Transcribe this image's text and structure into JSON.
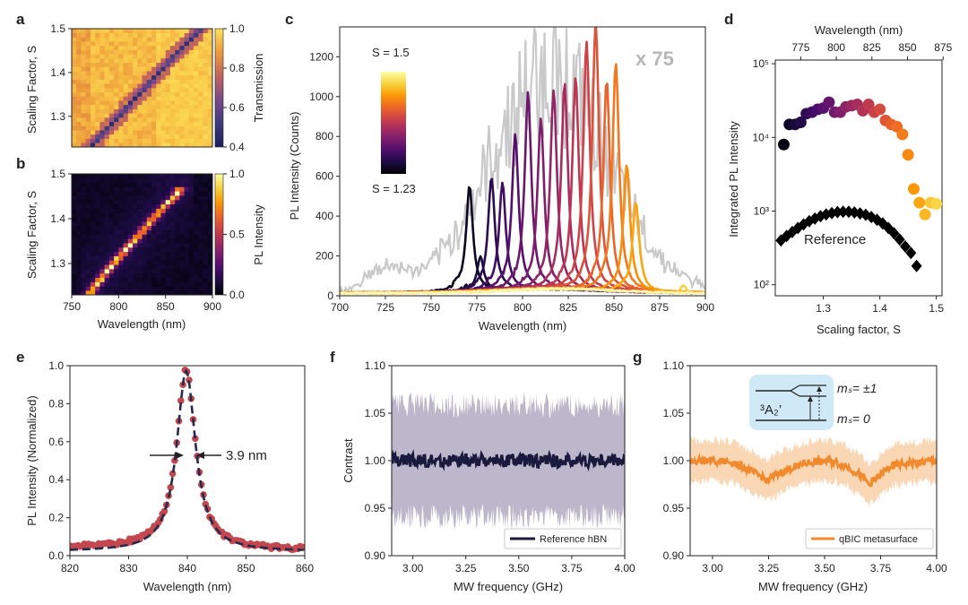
{
  "chart_data": [
    {
      "panel": "a",
      "type": "heatmap",
      "ylabel": "Scaling Factor, S",
      "colorbar_label": "Transmission",
      "colorbar_ticks": [
        "1.0",
        "0.8",
        "0.6",
        "0.4"
      ],
      "yticks": [
        "1.5",
        "1.4",
        "1.3"
      ],
      "xlim": [
        750,
        900
      ],
      "ylim": [
        1.23,
        1.5
      ],
      "clim": [
        0.4,
        1.0
      ],
      "ridge": [
        [
          770,
          1.23
        ],
        [
          800,
          1.3
        ],
        [
          830,
          1.37
        ],
        [
          860,
          1.44
        ],
        [
          888,
          1.5
        ]
      ]
    },
    {
      "panel": "b",
      "type": "heatmap",
      "xlabel": "Wavelength (nm)",
      "ylabel": "Scaling Factor, S",
      "colorbar_label": "PL Intensity",
      "colorbar_ticks": [
        "1.0",
        "0.5",
        "0.0"
      ],
      "xticks": [
        "750",
        "800",
        "850",
        "900"
      ],
      "yticks": [
        "1.5",
        "1.4",
        "1.3"
      ],
      "xlim": [
        750,
        900
      ],
      "ylim": [
        1.23,
        1.5
      ],
      "clim": [
        0,
        1
      ],
      "ridge": [
        [
          768,
          1.23
        ],
        [
          790,
          1.29
        ],
        [
          820,
          1.36
        ],
        [
          845,
          1.42
        ],
        [
          865,
          1.46
        ]
      ]
    },
    {
      "panel": "c",
      "type": "line",
      "xlabel": "Wavelength (nm)",
      "ylabel": "PL Intensity (Counts)",
      "xticks": [
        "700",
        "725",
        "750",
        "775",
        "800",
        "825",
        "850",
        "875",
        "900"
      ],
      "yticks": [
        "0",
        "200",
        "400",
        "600",
        "800",
        "1000",
        "1200"
      ],
      "xlim": [
        700,
        900
      ],
      "ylim": [
        0,
        1350
      ],
      "annotation": "x 75",
      "colorbar_top": "S = 1.5",
      "colorbar_bottom": "S = 1.23",
      "peaks": [
        {
          "center": 771,
          "height": 530
        },
        {
          "center": 777,
          "height": 170
        },
        {
          "center": 783,
          "height": 570
        },
        {
          "center": 789,
          "height": 540
        },
        {
          "center": 796,
          "height": 780
        },
        {
          "center": 803,
          "height": 990
        },
        {
          "center": 810,
          "height": 860
        },
        {
          "center": 817,
          "height": 1000
        },
        {
          "center": 823,
          "height": 1040
        },
        {
          "center": 829,
          "height": 1070
        },
        {
          "center": 835,
          "height": 1250
        },
        {
          "center": 840,
          "height": 1350
        },
        {
          "center": 846,
          "height": 1060
        },
        {
          "center": 851,
          "height": 1150
        },
        {
          "center": 857,
          "height": 640
        },
        {
          "center": 862,
          "height": 450
        }
      ]
    },
    {
      "panel": "d",
      "type": "scatter",
      "xlabel": "Scaling factor, S",
      "ylabel": "Integrated PL Intensity",
      "top_xlabel": "Wavelength (nm)",
      "xticks": [
        "1.3",
        "1.4",
        "1.5"
      ],
      "top_xticks": [
        "775",
        "800",
        "825",
        "850",
        "875"
      ],
      "yticks": [
        "10²",
        "10³",
        "10⁴",
        "10⁵"
      ],
      "xlim": [
        1.215,
        1.51
      ],
      "ylim_log10": [
        1.85,
        5.05
      ],
      "annotation": "Reference",
      "metasurface": {
        "x": [
          1.23,
          1.24,
          1.25,
          1.26,
          1.27,
          1.28,
          1.29,
          1.3,
          1.31,
          1.32,
          1.33,
          1.34,
          1.35,
          1.36,
          1.37,
          1.38,
          1.39,
          1.4,
          1.41,
          1.42,
          1.43,
          1.44,
          1.45,
          1.46,
          1.47,
          1.48,
          1.49,
          1.5
        ],
        "y": [
          8000,
          15000,
          15000,
          16000,
          21000,
          22000,
          24000,
          25000,
          30000,
          22000,
          22000,
          26000,
          27000,
          28000,
          23000,
          28000,
          22000,
          24000,
          17000,
          15000,
          14000,
          11000,
          5800,
          2000,
          1300,
          900,
          1300,
          1250
        ]
      },
      "reference": {
        "x": [
          1.225,
          1.235,
          1.245,
          1.255,
          1.265,
          1.275,
          1.285,
          1.295,
          1.305,
          1.315,
          1.325,
          1.335,
          1.345,
          1.355,
          1.365,
          1.375,
          1.385,
          1.395,
          1.405,
          1.415,
          1.425,
          1.435,
          1.445,
          1.455,
          1.465
        ],
        "y": [
          400,
          460,
          520,
          590,
          660,
          730,
          790,
          850,
          900,
          940,
          970,
          980,
          980,
          960,
          930,
          890,
          830,
          760,
          680,
          590,
          500,
          410,
          330,
          270,
          180
        ]
      }
    },
    {
      "panel": "e",
      "type": "scatter",
      "xlabel": "Wavelength (nm)",
      "ylabel": "PL Intensity (Normalized)",
      "xticks": [
        "820",
        "830",
        "840",
        "850",
        "860"
      ],
      "yticks": [
        "0.0",
        "0.2",
        "0.4",
        "0.6",
        "0.8",
        "1.0"
      ],
      "xlim": [
        820,
        860
      ],
      "ylim": [
        0,
        1.0
      ],
      "annotation": "3.9 nm",
      "lorentzian": {
        "center": 839.8,
        "fwhm": 3.9,
        "amplitude": 0.95,
        "offset": 0.03
      }
    },
    {
      "panel": "f",
      "type": "line",
      "xlabel": "MW frequency (GHz)",
      "ylabel": "Contrast",
      "xticks": [
        "3.00",
        "3.25",
        "3.50",
        "3.75",
        "4.00"
      ],
      "yticks": [
        "0.90",
        "0.95",
        "1.00",
        "1.05",
        "1.10"
      ],
      "xlim": [
        2.9,
        4.0
      ],
      "ylim": [
        0.9,
        1.1
      ],
      "series": [
        {
          "name": "Reference hBN",
          "mean": 1.0,
          "band_halfwidth": 0.06,
          "color": "#1a1a3e",
          "band_color": "#bdb7cb"
        }
      ]
    },
    {
      "panel": "g",
      "type": "line",
      "xlabel": "MW frequency (GHz)",
      "xticks": [
        "3.00",
        "3.25",
        "3.50",
        "3.75",
        "4.00"
      ],
      "yticks": [
        "0.90",
        "0.95",
        "1.00",
        "1.05",
        "1.10"
      ],
      "xlim": [
        2.9,
        4.0
      ],
      "ylim": [
        0.9,
        1.1
      ],
      "series": [
        {
          "name": "qBIC metasurface",
          "color": "#f08a2c",
          "band_color": "#fad7b4",
          "x": [
            2.9,
            3.0,
            3.1,
            3.2,
            3.25,
            3.3,
            3.4,
            3.5,
            3.55,
            3.6,
            3.65,
            3.7,
            3.75,
            3.8,
            3.9,
            4.0
          ],
          "y": [
            1.0,
            1.0,
            0.998,
            0.985,
            0.98,
            0.987,
            0.997,
            1.0,
            0.998,
            0.994,
            0.986,
            0.975,
            0.985,
            0.995,
            0.998,
            1.0
          ]
        }
      ],
      "inset": {
        "state": "³A₂’",
        "upper": "mₛ= ±1",
        "lower": "mₛ= 0"
      }
    }
  ],
  "colors": {
    "inferno": [
      "#000004",
      "#1b0c41",
      "#4a0c6b",
      "#781c6d",
      "#a52c60",
      "#cf4446",
      "#ed6925",
      "#fb9b06",
      "#f7d13d",
      "#fcffa4"
    ],
    "transmission": [
      "#1a1f5c",
      "#3f3a7e",
      "#7a4a88",
      "#c2635e",
      "#ed9a3a",
      "#f9c748",
      "#fbe15a"
    ],
    "gray_background": "#cccccc"
  }
}
